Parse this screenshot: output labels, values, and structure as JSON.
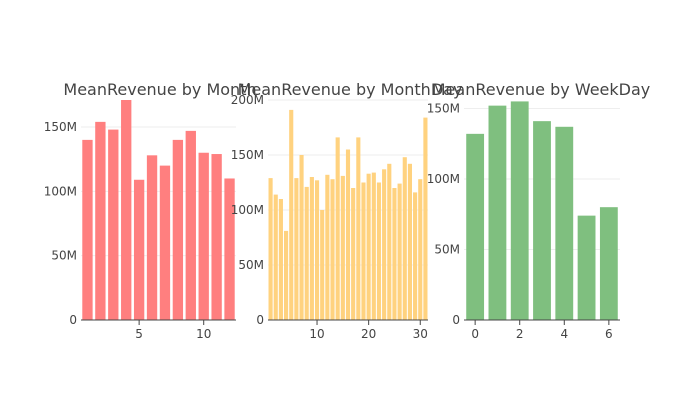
{
  "chart_data": [
    {
      "type": "bar",
      "title": "MeanRevenue by Month",
      "xlabel": "",
      "ylabel": "",
      "color": "#ff7f7f",
      "x": [
        1,
        2,
        3,
        4,
        5,
        6,
        7,
        8,
        9,
        10,
        11,
        12
      ],
      "values": [
        140,
        154,
        148,
        171,
        109,
        128,
        120,
        140,
        147,
        130,
        129,
        110
      ],
      "value_units": "M",
      "xlim": [
        0.5,
        12.5
      ],
      "ylim": [
        0,
        171
      ],
      "x_ticks": [
        5,
        10
      ],
      "x_tick_labels": [
        "5",
        "10"
      ],
      "y_ticks": [
        0,
        50,
        100,
        150
      ],
      "y_tick_labels": [
        "0",
        "50M",
        "100M",
        "150M"
      ],
      "grid": true
    },
    {
      "type": "bar",
      "title": "MeanRevenue by MonthDay",
      "xlabel": "",
      "ylabel": "",
      "color": "#ffd27f",
      "x": [
        1,
        2,
        3,
        4,
        5,
        6,
        7,
        8,
        9,
        10,
        11,
        12,
        13,
        14,
        15,
        16,
        17,
        18,
        19,
        20,
        21,
        22,
        23,
        24,
        25,
        26,
        27,
        28,
        29,
        30,
        31
      ],
      "values": [
        129,
        114,
        110,
        81,
        191,
        129,
        150,
        121,
        130,
        127,
        100,
        132,
        128,
        166,
        131,
        155,
        120,
        166,
        125,
        133,
        134,
        125,
        137,
        142,
        120,
        124,
        148,
        142,
        116,
        128,
        184
      ],
      "value_units": "M",
      "xlim": [
        0.5,
        31.5
      ],
      "ylim": [
        0,
        200
      ],
      "x_ticks": [
        10,
        20,
        30
      ],
      "x_tick_labels": [
        "10",
        "20",
        "30"
      ],
      "y_ticks": [
        0,
        50,
        100,
        150,
        200
      ],
      "y_tick_labels": [
        "0",
        "50M",
        "100M",
        "150M",
        "200M"
      ],
      "grid": true
    },
    {
      "type": "bar",
      "title": "MeanRevenue by WeekDay",
      "xlabel": "",
      "ylabel": "",
      "color": "#7fbf7f",
      "x": [
        0,
        1,
        2,
        3,
        4,
        5,
        6
      ],
      "values": [
        132,
        152,
        155,
        141,
        137,
        74,
        80
      ],
      "value_units": "M",
      "xlim": [
        -0.5,
        6.5
      ],
      "ylim": [
        0,
        156
      ],
      "x_ticks": [
        0,
        2,
        4,
        6
      ],
      "x_tick_labels": [
        "0",
        "2",
        "4",
        "6"
      ],
      "y_ticks": [
        0,
        50,
        100,
        150
      ],
      "y_tick_labels": [
        "0",
        "50M",
        "100M",
        "150M"
      ],
      "grid": true
    }
  ]
}
